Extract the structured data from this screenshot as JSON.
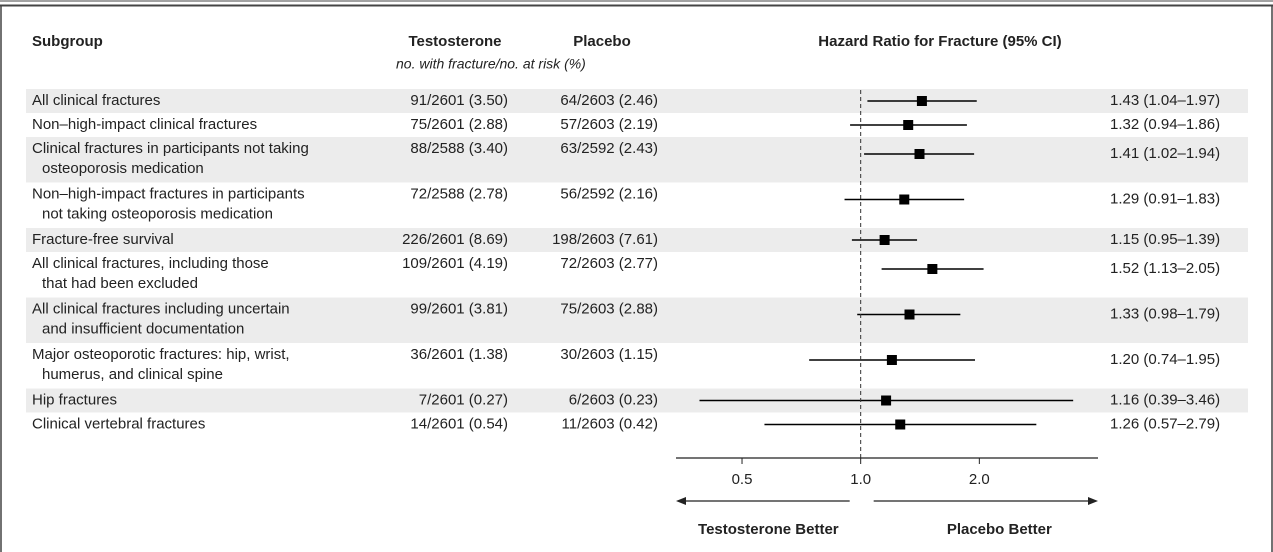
{
  "chart_data": {
    "type": "forest",
    "columns": {
      "subgroup": "Subgroup",
      "testosterone": "Testosterone",
      "placebo": "Placebo",
      "subheader": "no. with fracture/no. at risk (%)",
      "hr": "Hazard Ratio for Fracture (95% CI)"
    },
    "rows": [
      {
        "subgroup": [
          "All clinical fractures"
        ],
        "testosterone": "91/2601 (3.50)",
        "placebo": "64/2603 (2.46)"
      },
      {
        "subgroup": [
          "Non–high-impact clinical fractures"
        ],
        "testosterone": "75/2601 (2.88)",
        "placebo": "57/2603 (2.19)"
      },
      {
        "subgroup": [
          "Clinical fractures in participants not taking",
          "osteoporosis medication"
        ],
        "testosterone": "88/2588 (3.40)",
        "placebo": "63/2592 (2.43)"
      },
      {
        "subgroup": [
          "Non–high-impact fractures in participants",
          "not taking osteoporosis medication"
        ],
        "testosterone": "72/2588 (2.78)",
        "placebo": "56/2592 (2.16)"
      },
      {
        "subgroup": [
          "Fracture-free survival"
        ],
        "testosterone": "226/2601 (8.69)",
        "placebo": "198/2603 (7.61)"
      },
      {
        "subgroup": [
          "All clinical fractures, including those",
          "that had been excluded"
        ],
        "testosterone": "109/2601 (4.19)",
        "placebo": "72/2603 (2.77)"
      },
      {
        "subgroup": [
          "All clinical fractures including uncertain",
          "and insufficient documentation"
        ],
        "testosterone": "99/2601 (3.81)",
        "placebo": "75/2603 (2.88)"
      },
      {
        "subgroup": [
          "Major osteoporotic fractures: hip, wrist,",
          "humerus, and clinical spine"
        ],
        "testosterone": "36/2601 (1.38)",
        "placebo": "30/2603 (1.15)"
      },
      {
        "subgroup": [
          "Hip fractures"
        ],
        "testosterone": "7/2601 (0.27)",
        "placebo": "6/2603 (0.23)"
      },
      {
        "subgroup": [
          "Clinical vertebral fractures"
        ],
        "testosterone": "14/2601 (0.54)",
        "placebo": "11/2603 (0.42)"
      }
    ],
    "values": [
      1.43,
      1.32,
      1.41,
      1.29,
      1.15,
      1.52,
      1.33,
      1.2,
      1.16,
      1.26
    ],
    "ci_low": [
      1.04,
      0.94,
      1.02,
      0.91,
      0.95,
      1.13,
      0.98,
      0.74,
      0.39,
      0.57
    ],
    "ci_high": [
      1.97,
      1.86,
      1.94,
      1.83,
      1.39,
      2.05,
      1.79,
      1.95,
      3.46,
      2.79
    ],
    "value_labels": [
      "1.43 (1.04–1.97)",
      "1.32 (0.94–1.86)",
      "1.41 (1.02–1.94)",
      "1.29 (0.91–1.83)",
      "1.15 (0.95–1.39)",
      "1.52 (1.13–2.05)",
      "1.33 (0.98–1.79)",
      "1.20 (0.74–1.95)",
      "1.16 (0.39–3.46)",
      "1.26 (0.57–2.79)"
    ],
    "xlim": [
      0.34,
      4.0
    ],
    "xticks": [
      0.5,
      {
        "value": 1,
        "label": "1.0"
      },
      {
        "value": 2,
        "label": "2.0"
      }
    ],
    "log_scale": true,
    "reference_line": 1,
    "arrow_labels": [
      "Testosterone Better",
      "Placebo Better"
    ],
    "color": "#000000",
    "stripe_color": "#ececec"
  }
}
